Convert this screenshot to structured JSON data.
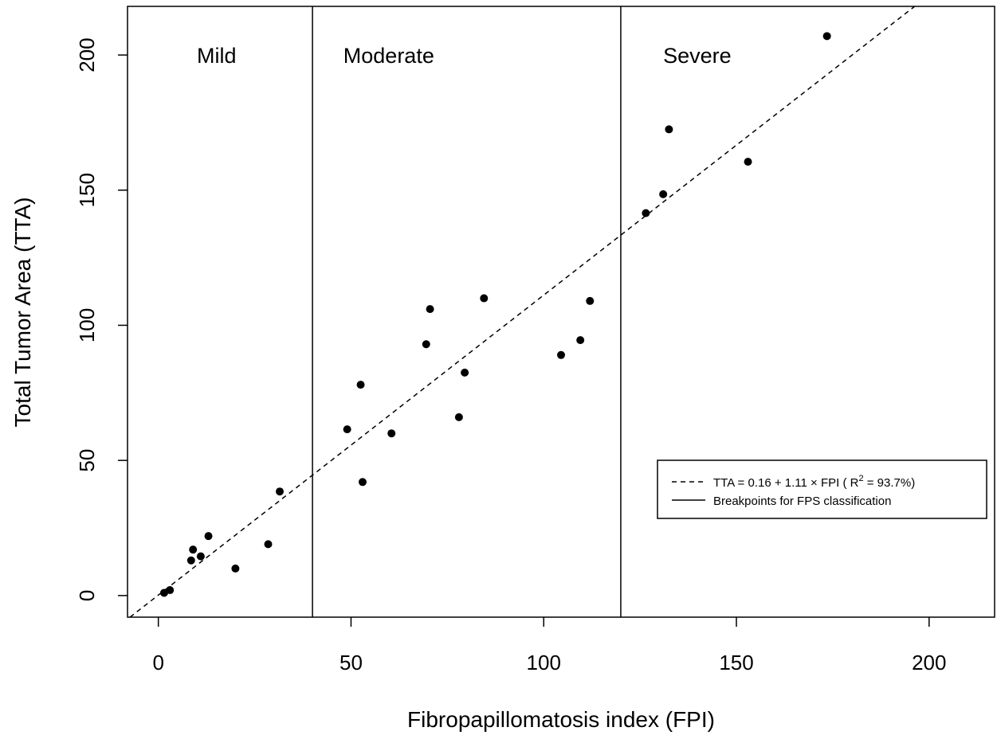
{
  "chart_data": {
    "type": "scatter",
    "xlabel": "Fibropapillomatosis index (FPI)",
    "ylabel": "Total Tumor Area (TTA)",
    "xlim": [
      -8,
      217
    ],
    "ylim": [
      -8,
      218
    ],
    "x_ticks": [
      "0",
      "50",
      "100",
      "150",
      "200"
    ],
    "y_ticks": [
      "0",
      "50",
      "100",
      "150",
      "200"
    ],
    "regions": [
      {
        "label": "Mild",
        "x": 10,
        "y": 200
      },
      {
        "label": "Moderate",
        "x": 48,
        "y": 200
      },
      {
        "label": "Severe",
        "x": 131,
        "y": 200
      }
    ],
    "breakpoints": [
      40,
      120
    ],
    "regression": {
      "intercept": 0.16,
      "slope": 1.11
    },
    "legend": {
      "placement": "bottom-right",
      "entries": [
        {
          "label": "TTA = 0.16 + 1.11 × FPI ( R",
          "sup": "2",
          "suffix": " = 93.7%)",
          "style": "dashed"
        },
        {
          "label": "Breakpoints for FPS classification",
          "sup": "",
          "suffix": "",
          "style": "solid"
        }
      ]
    },
    "points": [
      {
        "x": 1.5,
        "y": 1
      },
      {
        "x": 3,
        "y": 2
      },
      {
        "x": 8.5,
        "y": 13
      },
      {
        "x": 9,
        "y": 17
      },
      {
        "x": 11,
        "y": 14.5
      },
      {
        "x": 13,
        "y": 22
      },
      {
        "x": 20,
        "y": 10
      },
      {
        "x": 28.5,
        "y": 19
      },
      {
        "x": 31.5,
        "y": 38.5
      },
      {
        "x": 49,
        "y": 61.5
      },
      {
        "x": 52.5,
        "y": 78
      },
      {
        "x": 53,
        "y": 42
      },
      {
        "x": 60.5,
        "y": 60
      },
      {
        "x": 69.5,
        "y": 93
      },
      {
        "x": 70.5,
        "y": 106
      },
      {
        "x": 78,
        "y": 66
      },
      {
        "x": 79.5,
        "y": 82.5
      },
      {
        "x": 84.5,
        "y": 110
      },
      {
        "x": 104.5,
        "y": 89
      },
      {
        "x": 109.5,
        "y": 94.5
      },
      {
        "x": 112,
        "y": 109
      },
      {
        "x": 126.5,
        "y": 141.5
      },
      {
        "x": 131,
        "y": 148.5
      },
      {
        "x": 132.5,
        "y": 172.5
      },
      {
        "x": 153,
        "y": 160.5
      },
      {
        "x": 173.5,
        "y": 207
      }
    ]
  }
}
